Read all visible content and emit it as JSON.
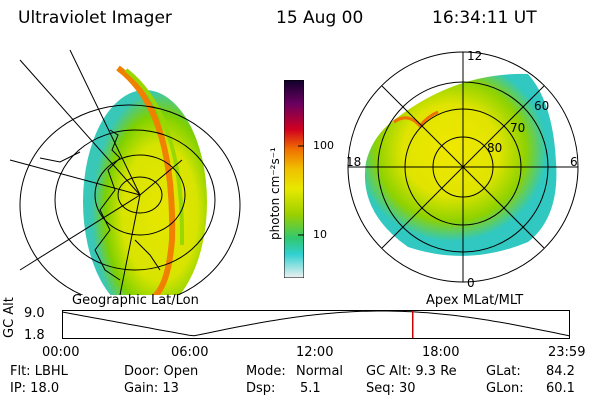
{
  "header": {
    "instrument": "Ultraviolet Imager",
    "date": "15 Aug 00",
    "time": "16:34:11 UT"
  },
  "colorbar": {
    "unit_label": "photon cm⁻²s⁻¹",
    "tick_100": "100",
    "tick_10": "10"
  },
  "left_panel": {
    "label": "Geographic Lat/Lon"
  },
  "right_panel": {
    "label": "Apex MLat/MLT",
    "mlt_12": "12",
    "mlt_18": "18",
    "mlt_6": "6",
    "mlt_0": "0",
    "lat_60": "60",
    "lat_70": "70",
    "lat_80": "80"
  },
  "timeline": {
    "ylabel": "GC Alt",
    "y_top": "9.0",
    "y_bottom": "1.8",
    "x_ticks": [
      "00:00",
      "06:00",
      "12:00",
      "18:00",
      "23:59"
    ],
    "current_marker_hour": 16.57,
    "marker_color": "#cc0000"
  },
  "status": {
    "flt": "Flt: LBHL",
    "ip": "IP: 18.0",
    "door": "Door: Open",
    "gain": "Gain: 13",
    "mode_label": "Mode:",
    "mode_value": "Normal",
    "dsp_label": "Dsp:",
    "dsp_value": "5.1",
    "gcalt": "GC Alt: 9.3 Re",
    "seq": "Seq: 30",
    "glat_label": "GLat:",
    "glat_value": "84.2",
    "glon_label": "GLon:",
    "glon_value": "60.1"
  }
}
